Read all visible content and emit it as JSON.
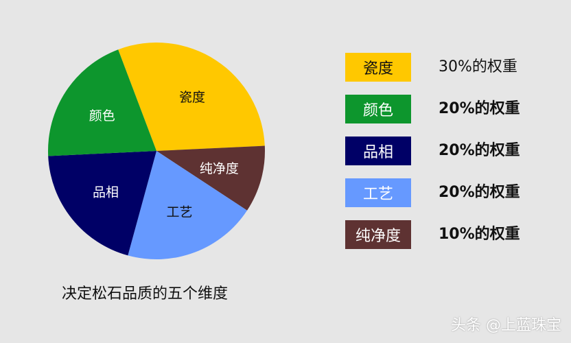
{
  "chart_data": {
    "type": "pie",
    "slices": [
      {
        "label": "瓷度",
        "value": 30,
        "color": "#ffc800"
      },
      {
        "label": "纯净度",
        "value": 10,
        "color": "#5e3232"
      },
      {
        "label": "工艺",
        "value": 20,
        "color": "#6699ff"
      },
      {
        "label": "品相",
        "value": 20,
        "color": "#000066"
      },
      {
        "label": "颜色",
        "value": 20,
        "color": "#0d962d"
      }
    ],
    "caption": "决定松石品质的五个维度"
  },
  "legend": [
    {
      "label": "瓷度",
      "text": "30%的权重",
      "bold": false,
      "color": "#ffc800",
      "label_color": "#111111"
    },
    {
      "label": "颜色",
      "text": "20%的权重",
      "bold": true,
      "color": "#0d962d",
      "label_color": "#ffffff"
    },
    {
      "label": "品相",
      "text": "20%的权重",
      "bold": true,
      "color": "#000066",
      "label_color": "#ffffff"
    },
    {
      "label": "工艺",
      "text": "20%的权重",
      "bold": true,
      "color": "#6699ff",
      "label_color": "#ffffff"
    },
    {
      "label": "纯净度",
      "text": "10%的权重",
      "bold": true,
      "color": "#5e3232",
      "label_color": "#ffffff"
    }
  ],
  "watermark": "头条 @上蓝珠宝"
}
